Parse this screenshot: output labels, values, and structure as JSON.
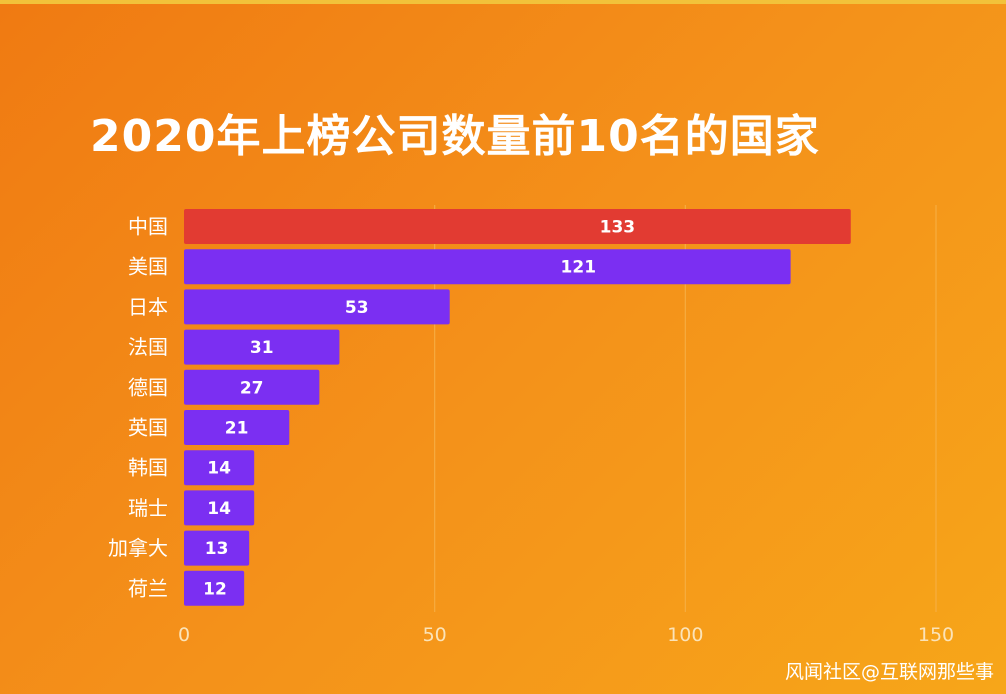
{
  "title": "2020年上榜公司数量前10名的国家",
  "watermark": "风闻社区@互联网那些事",
  "colors": {
    "highlight": "#e23b32",
    "bar": "#7b2ff2",
    "grid": "#f7b24a"
  },
  "chart_data": {
    "type": "bar",
    "orientation": "horizontal",
    "title": "2020年上榜公司数量前10名的国家",
    "categories": [
      "中国",
      "美国",
      "日本",
      "法国",
      "德国",
      "英国",
      "韩国",
      "瑞士",
      "加拿大",
      "荷兰"
    ],
    "values": [
      133,
      121,
      53,
      31,
      27,
      21,
      14,
      14,
      13,
      12
    ],
    "data_labels": [
      "133",
      "121",
      "53",
      "31",
      "27",
      "21",
      "14",
      "14",
      "13",
      "12"
    ],
    "highlight_index": 0,
    "xlim": [
      0,
      150
    ],
    "xticks": [
      0,
      50,
      100,
      150
    ],
    "xtick_labels": [
      "0",
      "50",
      "100",
      "150"
    ],
    "grid": true,
    "legend": "none"
  }
}
